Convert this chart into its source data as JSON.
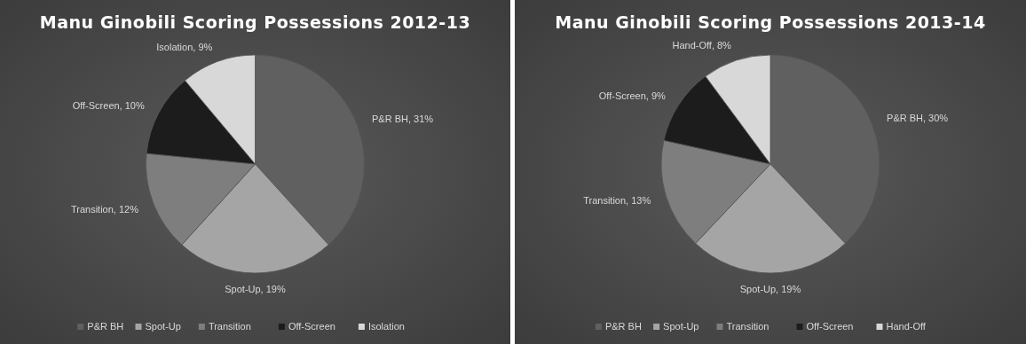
{
  "chart_data": [
    {
      "type": "pie",
      "title": "Manu Ginobili Scoring Possessions 2012-13",
      "categories": [
        "P&R BH",
        "Spot-Up",
        "Transition",
        "Off-Screen",
        "Isolation"
      ],
      "values": [
        31,
        19,
        12,
        10,
        9
      ],
      "value_labels": [
        "P&R BH, 31%",
        "Spot-Up, 19%",
        "Transition, 12%",
        "Off-Screen, 10%",
        "Isolation, 9%"
      ],
      "colors": [
        "#606060",
        "#a5a5a5",
        "#7e7e7e",
        "#1c1c1c",
        "#d8d8d8"
      ],
      "legend": "bottom"
    },
    {
      "type": "pie",
      "title": "Manu Ginobili Scoring Possessions 2013-14",
      "categories": [
        "P&R BH",
        "Spot-Up",
        "Transition",
        "Off-Screen",
        "Hand-Off"
      ],
      "values": [
        30,
        19,
        13,
        9,
        8
      ],
      "value_labels": [
        "P&R BH, 30%",
        "Spot-Up, 19%",
        "Transition, 13%",
        "Off-Screen, 9%",
        "Hand-Off, 8%"
      ],
      "colors": [
        "#606060",
        "#a5a5a5",
        "#7e7e7e",
        "#1c1c1c",
        "#d8d8d8"
      ],
      "legend": "bottom"
    }
  ]
}
